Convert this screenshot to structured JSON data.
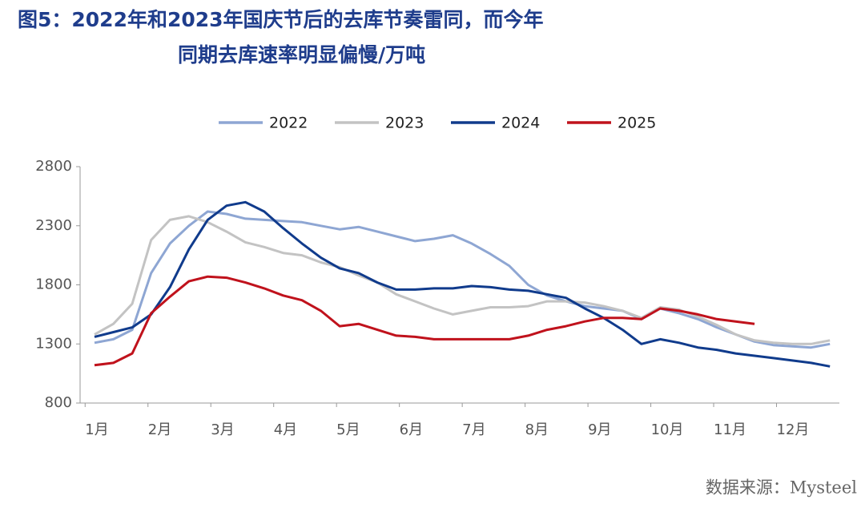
{
  "chart_data": {
    "type": "line",
    "title": [
      "图5：2022年和2023年国庆节后的去库节奏雷同，而今年",
      "同期去库速率明显偏慢/万吨"
    ],
    "source": "数据来源：Mysteel",
    "x": [
      1.15,
      1.45,
      1.75,
      2.05,
      2.35,
      2.65,
      2.95,
      3.25,
      3.55,
      3.85,
      4.15,
      4.45,
      4.75,
      5.05,
      5.35,
      5.65,
      5.95,
      6.25,
      6.55,
      6.85,
      7.15,
      7.45,
      7.75,
      8.05,
      8.35,
      8.65,
      8.95,
      9.25,
      9.55,
      9.85,
      10.15,
      10.45,
      10.75,
      11.05,
      11.35,
      11.65,
      11.95,
      12.25,
      12.55,
      12.85
    ],
    "series": [
      {
        "name": "2022",
        "color": "#8ea6d3",
        "values": [
          1310,
          1340,
          1420,
          1900,
          2150,
          2300,
          2420,
          2400,
          2360,
          2350,
          2340,
          2330,
          2300,
          2270,
          2290,
          2250,
          2210,
          2170,
          2190,
          2220,
          2150,
          2060,
          1960,
          1800,
          1710,
          1660,
          1620,
          1600,
          1580,
          1510,
          1600,
          1560,
          1510,
          1440,
          1380,
          1320,
          1290,
          1280,
          1270,
          1300
        ]
      },
      {
        "name": "2023",
        "color": "#c3c3c3",
        "values": [
          1380,
          1470,
          1640,
          2180,
          2350,
          2380,
          2330,
          2250,
          2160,
          2120,
          2070,
          2050,
          1990,
          1950,
          1880,
          1820,
          1720,
          1660,
          1600,
          1550,
          1580,
          1610,
          1610,
          1620,
          1660,
          1660,
          1650,
          1620,
          1580,
          1520,
          1610,
          1590,
          1530,
          1460,
          1380,
          1330,
          1310,
          1300,
          1300,
          1330
        ]
      },
      {
        "name": "2024",
        "color": "#103b8c",
        "values": [
          1360,
          1400,
          1440,
          1550,
          1780,
          2100,
          2350,
          2470,
          2500,
          2420,
          2280,
          2150,
          2030,
          1940,
          1900,
          1820,
          1760,
          1760,
          1770,
          1770,
          1790,
          1780,
          1760,
          1750,
          1720,
          1690,
          1600,
          1520,
          1420,
          1300,
          1340,
          1310,
          1270,
          1250,
          1220,
          1200,
          1180,
          1160,
          1140,
          1110
        ]
      },
      {
        "name": "2025",
        "color": "#c0121c",
        "values": [
          1120,
          1140,
          1220,
          1560,
          1700,
          1830,
          1870,
          1860,
          1820,
          1770,
          1710,
          1670,
          1580,
          1450,
          1470,
          1420,
          1370,
          1360,
          1340,
          1340,
          1340,
          1340,
          1340,
          1370,
          1420,
          1450,
          1490,
          1520,
          1520,
          1510,
          1600,
          1580,
          1550,
          1510,
          1490,
          1470,
          null,
          null,
          null,
          null
        ]
      }
    ],
    "xlim": [
      0.92,
      13
    ],
    "xticks": [
      {
        "value": 1,
        "label": "1月"
      },
      {
        "value": 2,
        "label": "2月"
      },
      {
        "value": 3,
        "label": "3月"
      },
      {
        "value": 4,
        "label": "4月"
      },
      {
        "value": 5,
        "label": "5月"
      },
      {
        "value": 6,
        "label": "6月"
      },
      {
        "value": 7,
        "label": "7月"
      },
      {
        "value": 8,
        "label": "8月"
      },
      {
        "value": 9,
        "label": "9月"
      },
      {
        "value": 10,
        "label": "10月"
      },
      {
        "value": 11,
        "label": "11月"
      },
      {
        "value": 12,
        "label": "12月"
      }
    ],
    "ylim": [
      800,
      2800
    ],
    "yticks": [
      800,
      1300,
      1800,
      2300,
      2800
    ],
    "legend": "top"
  }
}
